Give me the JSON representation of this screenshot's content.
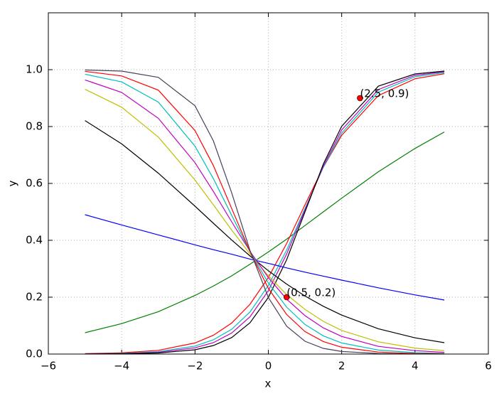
{
  "chart_data": {
    "type": "line",
    "xlabel": "x",
    "ylabel": "y",
    "xlim": [
      -6,
      6
    ],
    "ylim": [
      0,
      1.2
    ],
    "xticks": [
      {
        "value": -6,
        "label": "−6"
      },
      {
        "value": -4,
        "label": "−4"
      },
      {
        "value": -2,
        "label": "−2"
      },
      0,
      2,
      4,
      6
    ],
    "yticks": [
      {
        "value": 0,
        "label": "0.0"
      },
      0.2,
      0.4,
      0.6,
      0.8,
      {
        "value": 1,
        "label": "1.0"
      }
    ],
    "grid": true,
    "x": [
      -5,
      -4,
      -3,
      -2,
      -1.5,
      -1,
      -0.5,
      0,
      0.5,
      1,
      1.5,
      2,
      3,
      4,
      4.8
    ],
    "series": [
      {
        "color": "#008000",
        "values": [
          0.075,
          0.107,
          0.149,
          0.206,
          0.239,
          0.275,
          0.316,
          0.359,
          0.404,
          0.452,
          0.5,
          0.548,
          0.641,
          0.723,
          0.781
        ]
      },
      {
        "color": "#ff0000",
        "values": [
          0.0015,
          0.0045,
          0.013,
          0.039,
          0.066,
          0.109,
          0.175,
          0.269,
          0.389,
          0.525,
          0.657,
          0.769,
          0.909,
          0.968,
          0.986
        ]
      },
      {
        "color": "#00bfbf",
        "values": [
          0.0008,
          0.0026,
          0.0086,
          0.028,
          0.05,
          0.087,
          0.148,
          0.241,
          0.366,
          0.512,
          0.657,
          0.777,
          0.921,
          0.975,
          0.99
        ]
      },
      {
        "color": "#bf00bf",
        "values": [
          0.0005,
          0.0017,
          0.0061,
          0.022,
          0.04,
          0.074,
          0.131,
          0.223,
          0.352,
          0.507,
          0.661,
          0.788,
          0.93,
          0.98,
          0.993
        ]
      },
      {
        "color": "#000000",
        "values": [
          0.0002,
          0.001,
          0.0038,
          0.015,
          0.03,
          0.058,
          0.11,
          0.199,
          0.332,
          0.5,
          0.668,
          0.801,
          0.942,
          0.985,
          0.995
        ]
      },
      {
        "color": "#0000ff",
        "values": [
          0.49,
          0.454,
          0.419,
          0.384,
          0.367,
          0.351,
          0.334,
          0.319,
          0.303,
          0.288,
          0.274,
          0.26,
          0.233,
          0.208,
          0.19
        ]
      },
      {
        "color": "#000000",
        "values": [
          0.821,
          0.739,
          0.636,
          0.52,
          0.46,
          0.401,
          0.345,
          0.293,
          0.246,
          0.204,
          0.168,
          0.137,
          0.089,
          0.057,
          0.04
        ]
      },
      {
        "color": "#bfbf00",
        "values": [
          0.931,
          0.868,
          0.763,
          0.612,
          0.525,
          0.436,
          0.352,
          0.275,
          0.209,
          0.157,
          0.115,
          0.083,
          0.043,
          0.021,
          0.012
        ]
      },
      {
        "color": "#bf00bf",
        "values": [
          0.964,
          0.92,
          0.829,
          0.673,
          0.572,
          0.465,
          0.361,
          0.269,
          0.193,
          0.135,
          0.092,
          0.062,
          0.027,
          0.012,
          0.006
        ]
      },
      {
        "color": "#00bfbf",
        "values": [
          0.984,
          0.957,
          0.886,
          0.731,
          0.617,
          0.488,
          0.36,
          0.25,
          0.165,
          0.104,
          0.064,
          0.039,
          0.014,
          0.005,
          0.002
        ]
      },
      {
        "color": "#ff0000",
        "values": [
          0.994,
          0.978,
          0.928,
          0.786,
          0.663,
          0.512,
          0.36,
          0.231,
          0.139,
          0.079,
          0.044,
          0.024,
          0.007,
          0.002,
          0.001
        ]
      },
      {
        "color": "#4b3f5a",
        "values": [
          0.999,
          0.995,
          0.973,
          0.873,
          0.75,
          0.567,
          0.364,
          0.199,
          0.098,
          0.045,
          0.02,
          0.009,
          0.002,
          0.0003,
          0.0001
        ]
      }
    ],
    "points": [
      {
        "x": 2.5,
        "y": 0.9,
        "label": "(2.5, 0.9)",
        "color": "#ff0000"
      },
      {
        "x": 0.5,
        "y": 0.2,
        "label": "(0.5, 0.2)",
        "color": "#ff0000"
      }
    ]
  }
}
